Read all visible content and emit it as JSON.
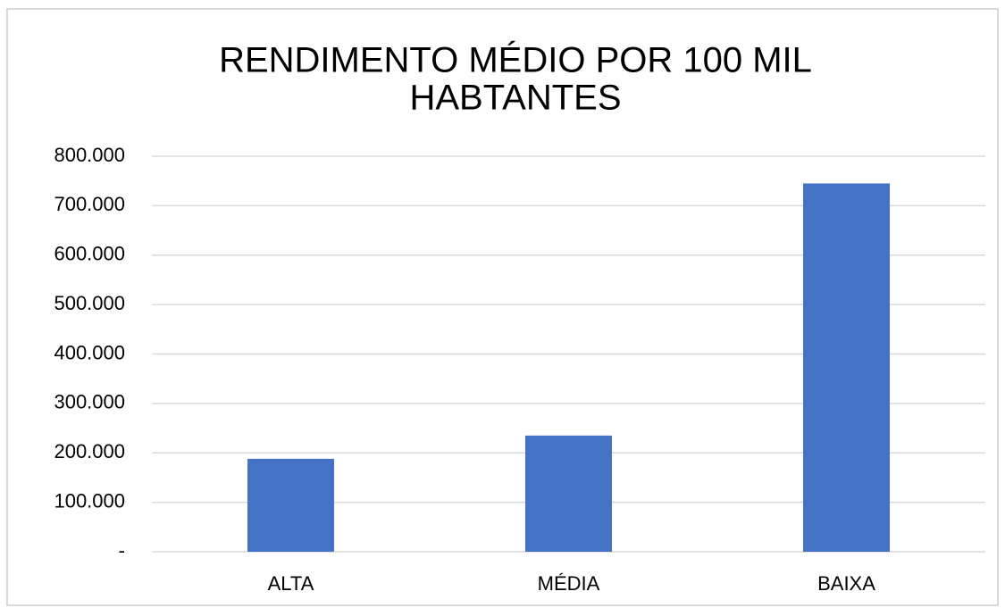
{
  "chart_data": {
    "type": "bar",
    "title": [
      "RENDIMENTO MÉDIO POR 100 MIL",
      "HABTANTES"
    ],
    "categories": [
      "ALTA",
      "MÉDIA",
      "BAIXA"
    ],
    "values": [
      188000,
      235000,
      745000
    ],
    "color": "#4472c4",
    "ylim": [
      0,
      800000
    ],
    "yticks": [
      {
        "value": 0,
        "label": "-"
      },
      {
        "value": 100000,
        "label": "100.000"
      },
      {
        "value": 200000,
        "label": "200.000"
      },
      {
        "value": 300000,
        "label": "300.000"
      },
      {
        "value": 400000,
        "label": "400.000"
      },
      {
        "value": 500000,
        "label": "500.000"
      },
      {
        "value": 600000,
        "label": "600.000"
      },
      {
        "value": 700000,
        "label": "700.000"
      },
      {
        "value": 800000,
        "label": "800.000"
      }
    ],
    "grid": true
  }
}
